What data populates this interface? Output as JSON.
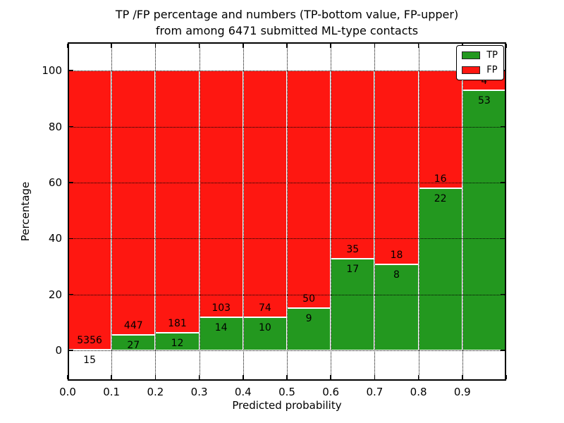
{
  "title": {
    "line1": "TP /FP percentage and numbers (TP-bottom value, FP-upper)",
    "line2": "from among 6471 submitted ML-type contacts"
  },
  "chart_data": {
    "type": "bar",
    "stacked": true,
    "note": "Normalized stacked bars: each bin shows TP% (bottom, green) and FP% (upper, red) of contacts in that predicted-probability bin; printed numbers are raw counts (TP bottom value, FP upper value).",
    "x_bin_starts": [
      0.0,
      0.1,
      0.2,
      0.3,
      0.4,
      0.5,
      0.6,
      0.7,
      0.8,
      0.9
    ],
    "bin_width": 0.1,
    "series": [
      {
        "name": "TP",
        "color": "#23981f",
        "counts": [
          15,
          27,
          12,
          14,
          10,
          9,
          17,
          8,
          22,
          53
        ]
      },
      {
        "name": "FP",
        "color": "#fe1711",
        "counts": [
          5356,
          447,
          181,
          103,
          74,
          50,
          35,
          18,
          16,
          4
        ]
      }
    ],
    "total_contacts": 6471,
    "xlabel": "Predicted probability",
    "ylabel": "Percentage",
    "xlim": [
      0.0,
      1.0
    ],
    "ylim": [
      -10.8,
      110.1
    ],
    "xtick_values": [
      0.0,
      0.1,
      0.2,
      0.3,
      0.4,
      0.5,
      0.6,
      0.7,
      0.8,
      0.9,
      1.0
    ],
    "xtick_labels": [
      "0.0",
      "0.1",
      "0.2",
      "0.3",
      "0.4",
      "0.5",
      "0.6",
      "0.7",
      "0.8",
      "0.9",
      ""
    ],
    "ytick_values": [
      0,
      20,
      40,
      60,
      80,
      100
    ],
    "ytick_labels": [
      "0",
      "20",
      "40",
      "60",
      "80",
      "100"
    ],
    "grid": true,
    "grid_style": "dotted",
    "legend_position": "upper right",
    "legend": [
      "TP",
      "FP"
    ]
  }
}
